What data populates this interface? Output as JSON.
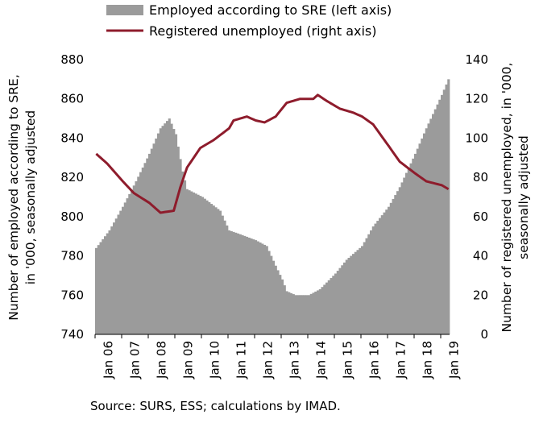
{
  "chart_data": {
    "type": "bar+line",
    "x_categories": [
      "Jan 06",
      "Jan 07",
      "Jan 08",
      "Jan 09",
      "Jan 10",
      "Jan 11",
      "Jan 12",
      "Jan 13",
      "Jan 14",
      "Jan 15",
      "Jan 16",
      "Jan 17",
      "Jan 18",
      "Jan 19"
    ],
    "left_axis": {
      "label_line1": "Number of employed according to SRE,",
      "label_line2": "in '000, seasonally adjusted",
      "ylim": [
        740,
        880
      ],
      "ticks": [
        "740",
        "760",
        "780",
        "800",
        "820",
        "840",
        "860",
        "880"
      ]
    },
    "right_axis": {
      "label_line1": "Number of registered unemployed, in '000,",
      "label_line2": "seasonally adjusted",
      "ylim": [
        0,
        140
      ],
      "ticks": [
        "0",
        "20",
        "40",
        "60",
        "80",
        "100",
        "120",
        "140"
      ]
    },
    "grid": false,
    "legend_position": "top",
    "series": [
      {
        "name": "Employed according to SRE (left axis)",
        "type": "bar",
        "axis": "left",
        "color": "#9b9b9b",
        "frequency": "monthly",
        "anchors": [
          [
            "2006-01",
            784
          ],
          [
            "2006-07",
            793
          ],
          [
            "2007-01",
            805
          ],
          [
            "2007-07",
            818
          ],
          [
            "2008-01",
            832
          ],
          [
            "2008-06",
            845
          ],
          [
            "2008-10",
            850
          ],
          [
            "2009-01",
            842
          ],
          [
            "2009-04",
            823
          ],
          [
            "2009-06",
            814
          ],
          [
            "2010-01",
            810
          ],
          [
            "2010-09",
            803
          ],
          [
            "2011-01",
            793
          ],
          [
            "2011-06",
            791
          ],
          [
            "2012-01",
            788
          ],
          [
            "2012-06",
            785
          ],
          [
            "2012-10",
            775
          ],
          [
            "2013-01",
            768
          ],
          [
            "2013-03",
            762
          ],
          [
            "2013-07",
            760
          ],
          [
            "2014-01",
            760
          ],
          [
            "2014-06",
            763
          ],
          [
            "2015-01",
            771
          ],
          [
            "2015-06",
            778
          ],
          [
            "2016-01",
            785
          ],
          [
            "2016-06",
            795
          ],
          [
            "2017-01",
            805
          ],
          [
            "2017-06",
            815
          ],
          [
            "2018-01",
            832
          ],
          [
            "2018-06",
            845
          ],
          [
            "2019-01",
            862
          ],
          [
            "2019-04",
            870
          ]
        ]
      },
      {
        "name": "Registered unemployed (right axis)",
        "type": "line",
        "axis": "right",
        "color": "#8e1c2c",
        "frequency": "monthly",
        "anchors": [
          [
            "2006-01",
            92
          ],
          [
            "2006-06",
            87
          ],
          [
            "2007-01",
            78
          ],
          [
            "2007-06",
            72
          ],
          [
            "2008-01",
            67
          ],
          [
            "2008-06",
            62
          ],
          [
            "2008-12",
            63
          ],
          [
            "2009-03",
            75
          ],
          [
            "2009-06",
            85
          ],
          [
            "2009-12",
            95
          ],
          [
            "2010-06",
            99
          ],
          [
            "2011-01",
            105
          ],
          [
            "2011-03",
            109
          ],
          [
            "2011-09",
            111
          ],
          [
            "2012-01",
            109
          ],
          [
            "2012-05",
            108
          ],
          [
            "2012-10",
            111
          ],
          [
            "2013-03",
            118
          ],
          [
            "2013-09",
            120
          ],
          [
            "2014-03",
            120
          ],
          [
            "2014-05",
            122
          ],
          [
            "2014-09",
            119
          ],
          [
            "2015-03",
            115
          ],
          [
            "2015-09",
            113
          ],
          [
            "2016-01",
            111
          ],
          [
            "2016-06",
            107
          ],
          [
            "2017-01",
            96
          ],
          [
            "2017-06",
            88
          ],
          [
            "2018-01",
            82
          ],
          [
            "2018-06",
            78
          ],
          [
            "2019-01",
            76
          ],
          [
            "2019-04",
            74
          ]
        ]
      }
    ],
    "source": "Source: SURS, ESS; calculations by IMAD."
  }
}
